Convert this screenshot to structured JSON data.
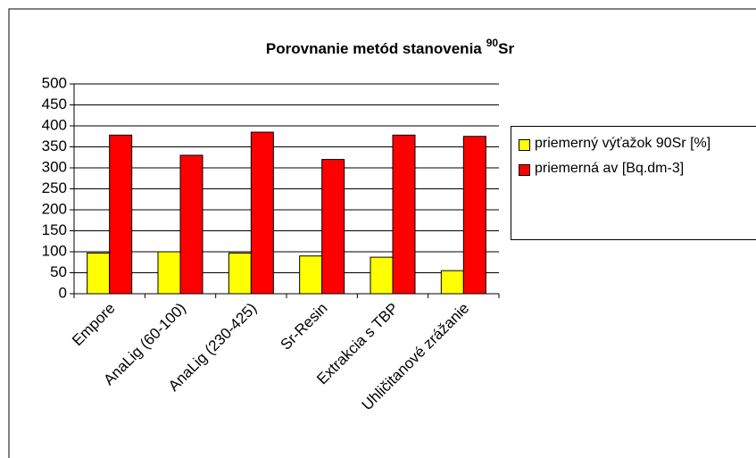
{
  "chart_data": {
    "type": "bar",
    "title": "Porovnanie metód stanovenia",
    "title_sup": "90",
    "title_end": "Sr",
    "categories": [
      "Empore",
      "AnaLig (60-100)",
      "AnaLig (230-425)",
      "Sr-Resin",
      "Extrakcia s TBP",
      "Uhličitanové zrážanie"
    ],
    "series": [
      {
        "name": "priemerný výťažok 90Sr [%]",
        "color": "#ffff00",
        "values": [
          97,
          100,
          97,
          90,
          87,
          55
        ]
      },
      {
        "name": "priemerná av [Bq.dm-3]",
        "color": "#ff0000",
        "values": [
          378,
          330,
          385,
          320,
          378,
          375
        ]
      }
    ],
    "ylim": [
      0,
      500
    ],
    "yticks": [
      0,
      50,
      100,
      150,
      200,
      250,
      300,
      350,
      400,
      450,
      500
    ],
    "grid": true,
    "legend": "right"
  }
}
